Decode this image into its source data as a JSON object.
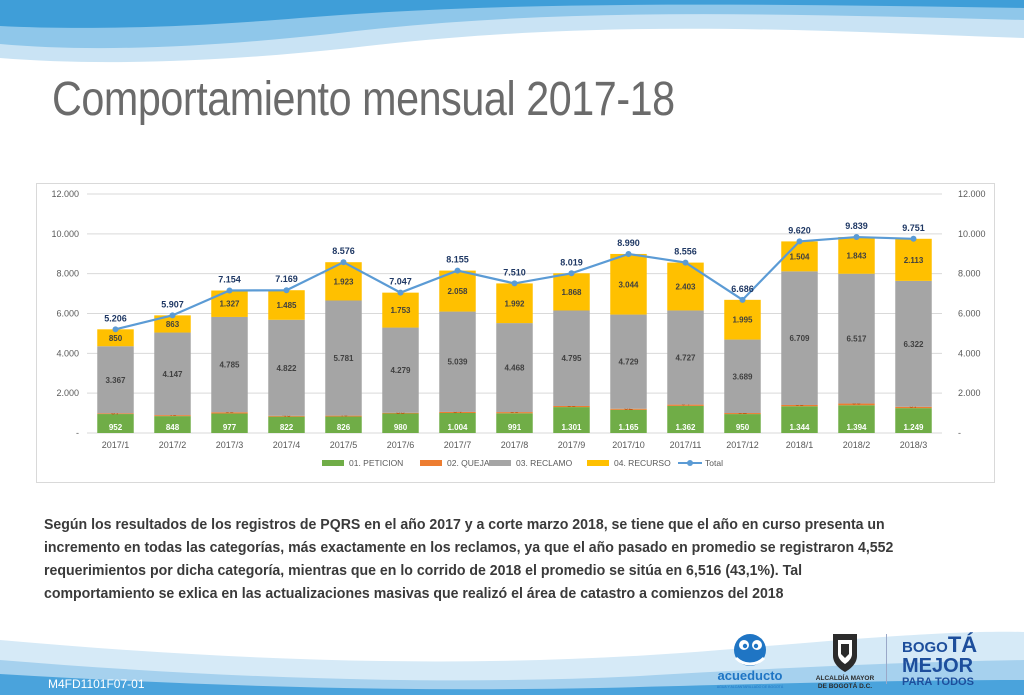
{
  "title": "Comportamiento mensual 2017-18",
  "paragraph": "Según los resultados de los registros de PQRS en el año 2017 y a corte marzo 2018, se tiene que el año en curso presenta un incremento en todas las categorías, más exactamente en los reclamos, ya que el año pasado en promedio se registraron 4,552 requerimientos por dicha categoría, mientras que en lo corrido de 2018 el promedio se sitúa en 6,516 (43,1%). Tal comportamiento se exlica en las actualizaciones masivas que realizó el área de catastro a comienzos del 2018",
  "footer_code": "M4FD1101F07-01",
  "logos": {
    "acueducto": "acueducto",
    "acueducto_sub": "AGUA Y ALCANTARILLADO DE BOGOTÁ",
    "alcaldia_line1": "ALCALDÍA MAYOR",
    "alcaldia_line2": "DE BOGOTÁ D.C.",
    "bogota_b": "BOGO",
    "bogota_ta": "TÁ",
    "bogota_mejor": "MEJOR",
    "bogota_para": "PARA TODOS"
  },
  "colors": {
    "peticion": "#70ad47",
    "queja": "#ed7d31",
    "reclamo": "#a5a5a5",
    "recurso": "#ffc000",
    "total": "#5b9bd5",
    "title": "#6b6b6b"
  },
  "chart_data": {
    "type": "bar",
    "stacked": true,
    "categories": [
      "2017/1",
      "2017/2",
      "2017/3",
      "2017/4",
      "2017/5",
      "2017/6",
      "2017/7",
      "2017/8",
      "2017/9",
      "2017/10",
      "2017/11",
      "2017/12",
      "2018/1",
      "2018/2",
      "2018/3"
    ],
    "series": [
      {
        "name": "01. PETICION",
        "values": [
          952,
          848,
          977,
          822,
          826,
          980,
          1004,
          991,
          1301,
          1165,
          1362,
          950,
          1344,
          1394,
          1249
        ],
        "labels": [
          "952",
          "848",
          "977",
          "822",
          "826",
          "980",
          "1.004",
          "991",
          "1.301",
          "1.165",
          "1.362",
          "950",
          "1.344",
          "1.394",
          "1.249"
        ]
      },
      {
        "name": "02. QUEJA",
        "values": [
          37,
          49,
          65,
          40,
          46,
          35,
          54,
          59,
          55,
          52,
          64,
          52,
          63,
          85,
          67
        ],
        "labels": [
          "37",
          "49",
          "65",
          "40",
          "46",
          "35",
          "54",
          "59",
          "55",
          "52",
          "64",
          "52",
          "63",
          "85",
          "67"
        ]
      },
      {
        "name": "03. RECLAMO",
        "values": [
          3367,
          4147,
          4785,
          4822,
          5781,
          4279,
          5039,
          4468,
          4795,
          4729,
          4727,
          3689,
          6709,
          6517,
          6322
        ],
        "labels": [
          "3.367",
          "4.147",
          "4.785",
          "4.822",
          "5.781",
          "4.279",
          "5.039",
          "4.468",
          "4.795",
          "4.729",
          "4.727",
          "3.689",
          "6.709",
          "6.517",
          "6.322"
        ]
      },
      {
        "name": "04. RECURSO",
        "values": [
          850,
          863,
          1327,
          1485,
          1923,
          1753,
          2058,
          1992,
          1868,
          3044,
          2403,
          1995,
          1504,
          1843,
          2113
        ],
        "labels": [
          "850",
          "863",
          "1.327",
          "1.485",
          "1.923",
          "1.753",
          "2.058",
          "1.992",
          "1.868",
          "3.044",
          "2.403",
          "1.995",
          "1.504",
          "1.843",
          "2.113"
        ]
      }
    ],
    "line": {
      "name": "Total",
      "values": [
        5206,
        5907,
        7154,
        7169,
        8576,
        7047,
        8155,
        7510,
        8019,
        8990,
        8556,
        6686,
        9620,
        9839,
        9751
      ],
      "labels": [
        "5.206",
        "5.907",
        "7.154",
        "7.169",
        "8.576",
        "7.047",
        "8.155",
        "7.510",
        "8.019",
        "8.990",
        "8.556",
        "6.686",
        "9.620",
        "9.839",
        "9.751"
      ]
    },
    "ylim": [
      0,
      12000
    ],
    "yticks": [
      "-",
      "2.000",
      "4.000",
      "6.000",
      "8.000",
      "10.000",
      "12.000"
    ],
    "grid": true,
    "legend_position": "bottom"
  }
}
